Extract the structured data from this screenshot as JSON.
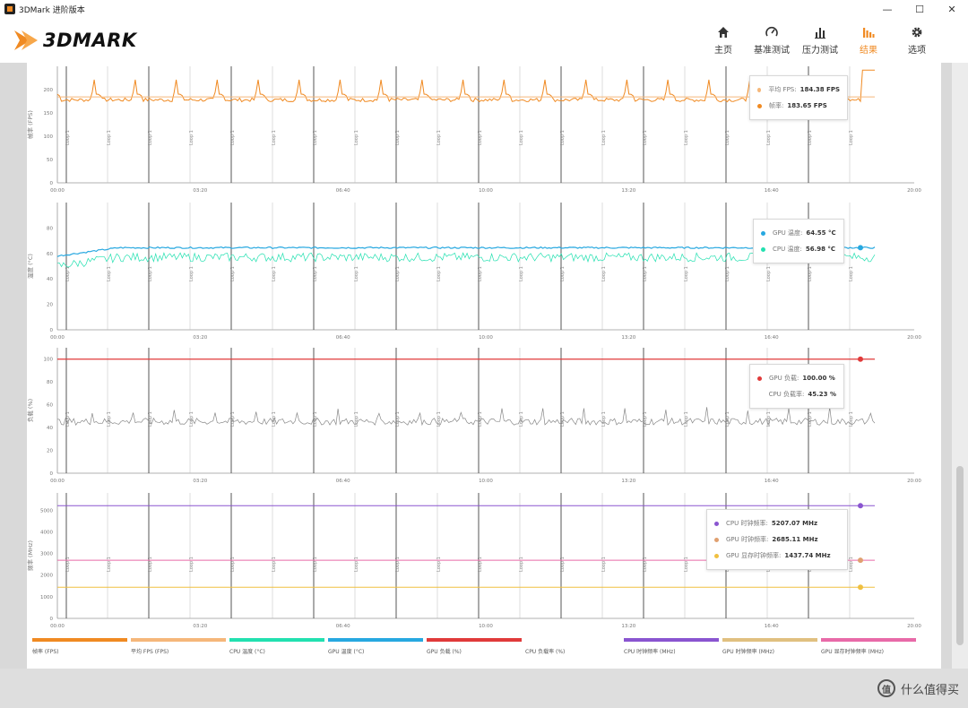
{
  "window": {
    "title": "3DMark 进阶版本",
    "controls": [
      "—",
      "☐",
      "✕"
    ]
  },
  "header": {
    "logo_text": "3DMARK",
    "nav": [
      {
        "label": "主页",
        "icon": "home-icon",
        "active": false
      },
      {
        "label": "基准测试",
        "icon": "gauge-icon",
        "active": false
      },
      {
        "label": "压力测试",
        "icon": "bar-chart-icon",
        "active": false
      },
      {
        "label": "结果",
        "icon": "results-icon",
        "active": true
      },
      {
        "label": "选项",
        "icon": "gear-icon",
        "active": false
      }
    ]
  },
  "charts": {
    "x_ticks": [
      "00:00",
      "03:20",
      "06:40",
      "10:00",
      "13:20",
      "16:40",
      "20:00"
    ],
    "marker_label": "Loop 1",
    "fps": {
      "ylabel": "帧率 (FPS)",
      "y_ticks": [
        "0",
        "50",
        "100",
        "150",
        "200"
      ],
      "ylim": [
        0,
        250
      ],
      "legend": [
        {
          "label": "平均 FPS:",
          "value": "184.38 FPS",
          "color": "#f5b77a"
        },
        {
          "label": "帧率:",
          "value": "183.65 FPS",
          "color": "#f08a22"
        }
      ]
    },
    "temp": {
      "ylabel": "温度 (°C)",
      "y_ticks": [
        "0",
        "20",
        "40",
        "60",
        "80"
      ],
      "ylim": [
        0,
        100
      ],
      "legend": [
        {
          "label": "GPU 温度:",
          "value": "64.55 °C",
          "color": "#27a8e0"
        },
        {
          "label": "CPU 温度:",
          "value": "56.98 °C",
          "color": "#22e0b0"
        }
      ]
    },
    "load": {
      "ylabel": "负载 (%)",
      "y_ticks": [
        "0",
        "20",
        "40",
        "60",
        "80",
        "100"
      ],
      "ylim": [
        0,
        110
      ],
      "legend": [
        {
          "label": "GPU 负载:",
          "value": "100.00 %",
          "color": "#e03a3a"
        },
        {
          "label": "CPU 负载率:",
          "value": "45.23 %",
          "color": "#888888"
        }
      ]
    },
    "freq": {
      "ylabel": "频率 (MHz)",
      "y_ticks": [
        "0",
        "1000",
        "2000",
        "3000",
        "4000",
        "5000"
      ],
      "ylim": [
        0,
        5800
      ],
      "legend": [
        {
          "label": "CPU 时钟频率:",
          "value": "5207.07 MHz",
          "color": "#8a55d0"
        },
        {
          "label": "GPU 时钟频率:",
          "value": "2685.11 MHz",
          "color": "#e0a070"
        },
        {
          "label": "GPU 显存时钟频率:",
          "value": "1437.74 MHz",
          "color": "#f0c040"
        }
      ]
    }
  },
  "chart_data": [
    {
      "type": "line",
      "ylabel": "帧率 (FPS)",
      "ylim": [
        0,
        250
      ],
      "x": [
        "00:00",
        "03:20",
        "06:40",
        "10:00",
        "13:20",
        "16:40",
        "20:00"
      ],
      "series": [
        {
          "name": "帧率 (FPS)",
          "color": "#f08a22",
          "base": 178,
          "peak": 232,
          "loops": 20
        },
        {
          "name": "平均 FPS",
          "color": "#f5b77a",
          "value": 184.38
        }
      ]
    },
    {
      "type": "line",
      "ylabel": "温度 (°C)",
      "ylim": [
        0,
        100
      ],
      "series": [
        {
          "name": "GPU 温度 (°C)",
          "color": "#27a8e0",
          "start": 58,
          "plateau": 64.5
        },
        {
          "name": "CPU 温度 (°C)",
          "color": "#22e0b0",
          "start": 50,
          "plateau": 56.98
        }
      ]
    },
    {
      "type": "line",
      "ylabel": "负载 (%)",
      "ylim": [
        0,
        110
      ],
      "series": [
        {
          "name": "GPU 负载 (%)",
          "color": "#e03a3a",
          "value": 100
        },
        {
          "name": "CPU 负载率 (%)",
          "color": "#888888",
          "value": 45.23
        }
      ]
    },
    {
      "type": "line",
      "ylabel": "频率 (MHz)",
      "ylim": [
        0,
        5800
      ],
      "series": [
        {
          "name": "CPU 时钟频率 (MHz)",
          "color": "#8a55d0",
          "value": 5207.07
        },
        {
          "name": "GPU 时钟频率 (MHz)",
          "color": "#e0a070",
          "value": 2685.11
        },
        {
          "name": "GPU 显存时钟频率 (MHz)",
          "color": "#f0c040",
          "value": 1437.74
        }
      ]
    }
  ],
  "bottom_legend": [
    {
      "label": "帧率 (FPS)",
      "color": "#f08a22"
    },
    {
      "label": "平均 FPS (FPS)",
      "color": "#f5b77a"
    },
    {
      "label": "CPU 温度 (°C)",
      "color": "#22e0b0"
    },
    {
      "label": "GPU 温度 (°C)",
      "color": "#27a8e0"
    },
    {
      "label": "GPU 负载 (%)",
      "color": "#e03a3a"
    },
    {
      "label": "CPU 负载率 (%)",
      "color": "#ffffff"
    },
    {
      "label": "CPU 时钟频率 (MHz)",
      "color": "#8a55d0"
    },
    {
      "label": "GPU 时钟频率 (MHz)",
      "color": "#e0c080"
    },
    {
      "label": "GPU 显存时钟频率 (MHz)",
      "color": "#e86aa8"
    }
  ],
  "watermark": {
    "badge": "值",
    "text": "什么值得买"
  }
}
